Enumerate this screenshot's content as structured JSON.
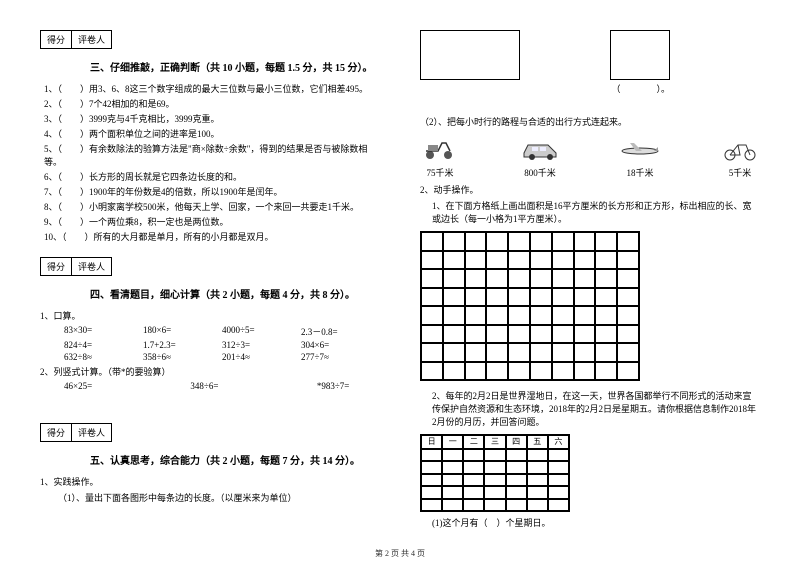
{
  "scoreBox": {
    "col1": "得分",
    "col2": "评卷人"
  },
  "section3": {
    "title": "三、仔细推敲，正确判断（共 10 小题，每题 1.5 分，共 15 分）。",
    "items": [
      "（　　）用3、6、8这三个数字组成的最大三位数与最小三位数，它们相差495。",
      "（　　）7个42相加的和是69。",
      "（　　）3999克与4千克相比，3999克重。",
      "（　　）两个面积单位之间的进率是100。",
      "（　　）有余数除法的验算方法是\"商×除数÷余数\"，得到的结果是否与被除数相等。",
      "（　　）长方形的周长就是它四条边长度的和。",
      "（　　）1900年的年份数是4的倍数，所以1900年是闰年。",
      "（　　）小明家离学校500米，他每天上学、回家，一个来回一共要走1千米。",
      "（　　）一个两位乘8，积一定也是两位数。",
      "（　　）所有的大月都是单月，所有的小月都是双月。"
    ]
  },
  "section4": {
    "title": "四、看清题目，细心计算（共 2 小题，每题 4 分，共 8 分）。",
    "sub1": "1、口算。",
    "rows": [
      [
        "83×30=",
        "180×6=",
        "4000÷5=",
        "2.3－0.8="
      ],
      [
        "824÷4=",
        "1.7+2.3=",
        "312÷3=",
        "304×6="
      ],
      [
        "632÷8≈",
        "358÷6≈",
        "201÷4≈",
        "277÷7≈"
      ]
    ],
    "sub2": "2、列竖式计算。（带*的要验算）",
    "row2": [
      "46×25=",
      "",
      "348÷6=",
      "",
      "*983÷7="
    ]
  },
  "section5": {
    "title": "五、认真思考，综合能力（共 2 小题，每题 7 分，共 14 分）。",
    "sub1": "1、实践操作。",
    "sub1a": "（1）、量出下面各图形中每条边的长度。（以厘米来为单位）"
  },
  "rightCol": {
    "paren": "（　　　　）。",
    "q2": "（2）、把每小时行的路程与合适的出行方式连起来。",
    "transports": [
      {
        "icon": "scooter",
        "label": "75千米"
      },
      {
        "icon": "car",
        "label": "800千米"
      },
      {
        "icon": "plane",
        "label": "18千米"
      },
      {
        "icon": "bike",
        "label": "5千米"
      }
    ],
    "q2title": "2、动手操作。",
    "q2sub1": "1、在下面方格纸上画出面积是16平方厘米的长方形和正方形，标出相应的长、宽或边长（每一小格为1平方厘米）。",
    "q2sub2": "2、每年的2月2日是世界湿地日，在这一天，世界各国都举行不同形式的活动来宣传保护自然资源和生态环境，2018年的2月2日是星期五。请你根据信息制作2018年2月份的月历，并回答问题。",
    "calHeaders": [
      "日",
      "一",
      "二",
      "三",
      "四",
      "五",
      "六"
    ],
    "q2q": "(1)这个月有（　）个星期日。"
  },
  "footer": "第 2 页 共 4 页",
  "colors": {
    "text": "#000000",
    "bg": "#ffffff"
  }
}
